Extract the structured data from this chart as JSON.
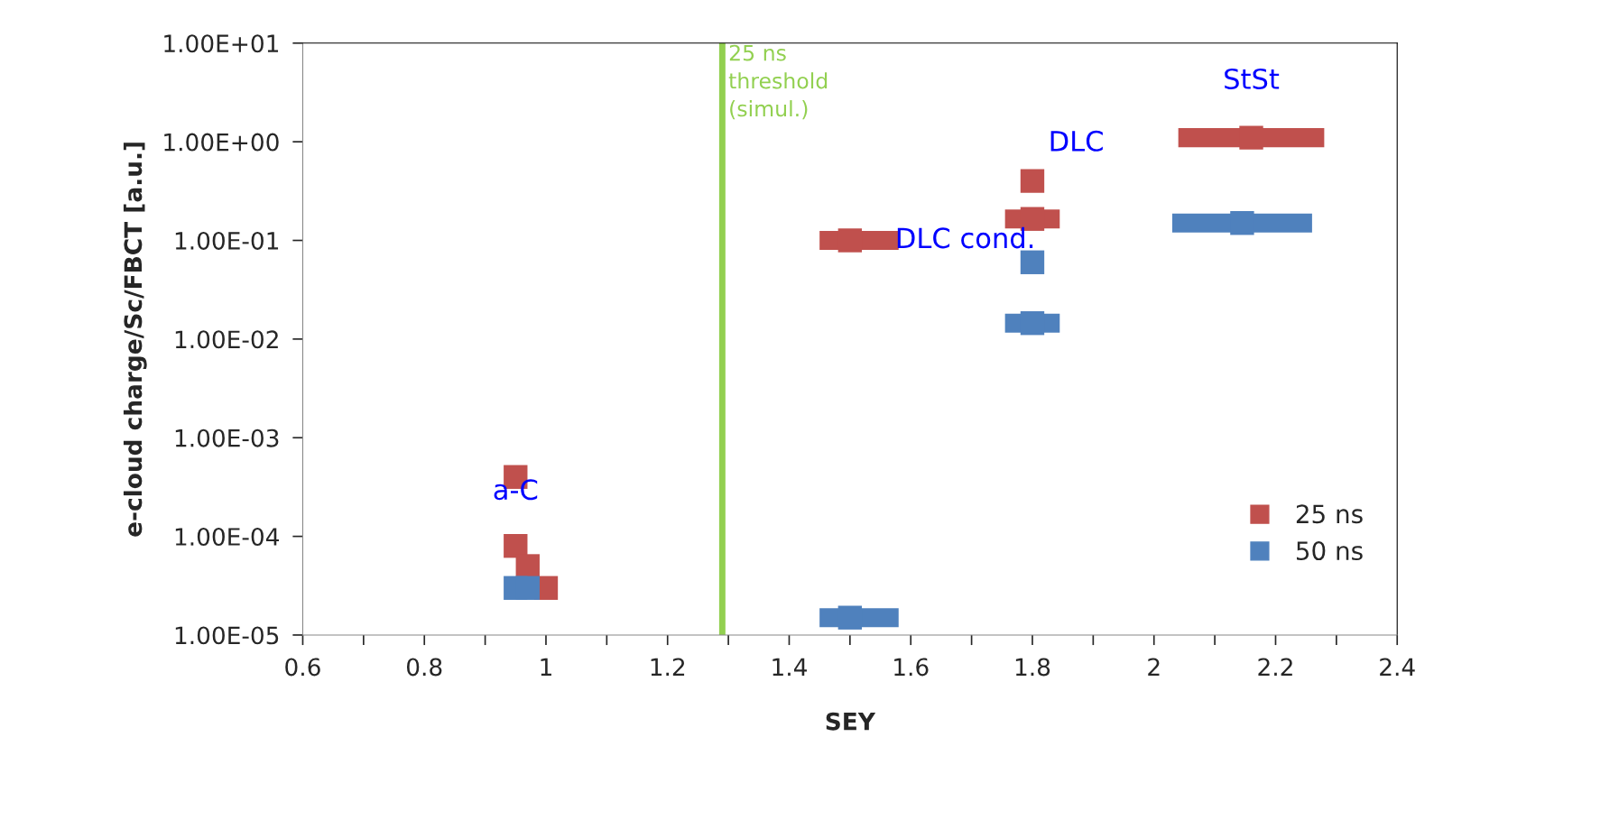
{
  "chart_data": {
    "type": "scatter",
    "xlabel": "SEY",
    "ylabel": "e-cloud charge/Sc/FBCT [a.u.]",
    "log": "y",
    "xlim": [
      0.6,
      2.4
    ],
    "ylim": [
      1e-05,
      10
    ],
    "xticks": [
      0.6,
      {
        "value": 0.7,
        "label": null
      },
      0.8,
      {
        "value": 0.9,
        "label": null
      },
      1,
      {
        "value": 1.1,
        "label": null
      },
      1.2,
      {
        "value": 1.3,
        "label": null
      },
      1.4,
      {
        "value": 1.5,
        "label": null
      },
      1.6,
      {
        "value": 1.7,
        "label": null
      },
      1.8,
      {
        "value": 1.9,
        "label": null
      },
      2,
      {
        "value": 2.1,
        "label": null
      },
      2.2,
      {
        "value": 2.3,
        "label": null
      },
      2.4
    ],
    "yticks": [
      {
        "value": 1e-05,
        "label": "1.00E-05"
      },
      {
        "value": 0.0001,
        "label": "1.00E-04"
      },
      {
        "value": 0.001,
        "label": "1.00E-03"
      },
      {
        "value": 0.01,
        "label": "1.00E-02"
      },
      {
        "value": 0.1,
        "label": "1.00E-01"
      },
      {
        "value": 1,
        "label": "1.00E+00"
      },
      {
        "value": 10,
        "label": "1.00E+01"
      }
    ],
    "grid": false,
    "legend": "bottom right",
    "marker": "square",
    "series": [
      {
        "name": "25 ns",
        "color": "#c0504d",
        "x": [
          0.95,
          0.95,
          0.97,
          1.0,
          1.5,
          1.8,
          1.8,
          2.16
        ],
        "values": [
          0.0004,
          8e-05,
          5e-05,
          3e-05,
          0.1,
          0.4,
          0.165,
          1.1
        ],
        "xerrors": [
          null,
          null,
          null,
          null,
          [
            1.45,
            1.58
          ],
          null,
          [
            1.755,
            1.845
          ],
          [
            2.04,
            2.28
          ]
        ]
      },
      {
        "name": "50 ns",
        "color": "#4f81bd",
        "x": [
          0.95,
          0.97,
          1.5,
          1.8,
          1.8,
          2.145
        ],
        "values": [
          3e-05,
          3e-05,
          1.5e-05,
          0.06,
          0.0145,
          0.15
        ],
        "xerrors": [
          null,
          null,
          [
            1.45,
            1.58
          ],
          null,
          [
            1.755,
            1.845
          ],
          [
            2.03,
            2.26
          ]
        ]
      }
    ],
    "ref_lines": [
      {
        "axis": "x",
        "value": 1.29,
        "label": "25 ns\nthreshold\n(simul.)",
        "color": "#92d050"
      }
    ],
    "annotations": [
      {
        "text": "a-C",
        "x": 0.95,
        "y": 0.0004
      },
      {
        "text": "DLC cond.",
        "x": 1.5,
        "y": 0.1
      },
      {
        "text": "DLC",
        "x": 1.8,
        "y": 0.4
      },
      {
        "text": "StSt",
        "x": 2.16,
        "y": 1.1
      }
    ]
  }
}
